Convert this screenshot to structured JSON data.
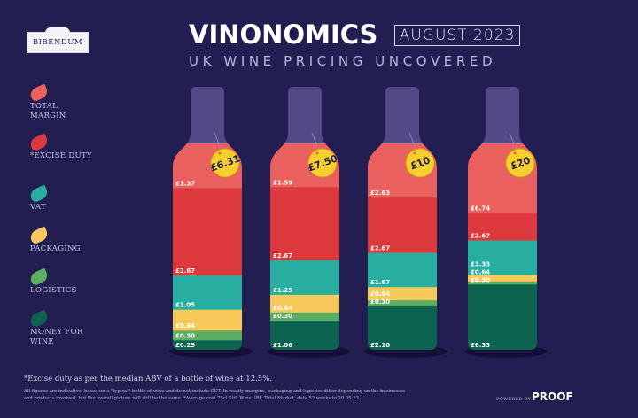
{
  "header": {
    "logo_text": "BIBENDUM",
    "title": "VINONOMICS",
    "date": "AUGUST 2023",
    "subtitle": "UK WINE PRICING UNCOVERED"
  },
  "legend": [
    {
      "label": "TOTAL MARGIN",
      "color": "#e9605e"
    },
    {
      "label": "*EXCISE DUTY",
      "color": "#dd393d"
    },
    {
      "label": "VAT",
      "color": "#27aea1"
    },
    {
      "label": "PACKAGING",
      "color": "#f7c95a"
    },
    {
      "label": "LOGISTICS",
      "color": "#5cae62"
    },
    {
      "label": "MONEY FOR WINE",
      "color": "#0c6450"
    }
  ],
  "chart_data": {
    "type": "bar",
    "stacked": true,
    "normalized": true,
    "categories": [
      "£6.31",
      "£7.50",
      "£10",
      "£20"
    ],
    "series": [
      {
        "name": "TOTAL MARGIN",
        "values": [
          1.37,
          1.59,
          2.63,
          6.74
        ]
      },
      {
        "name": "*EXCISE DUTY",
        "values": [
          2.67,
          2.67,
          2.67,
          2.67
        ]
      },
      {
        "name": "VAT",
        "values": [
          1.05,
          1.25,
          1.67,
          3.33
        ]
      },
      {
        "name": "PACKAGING",
        "values": [
          0.64,
          0.64,
          0.64,
          0.64
        ]
      },
      {
        "name": "LOGISTICS",
        "values": [
          0.3,
          0.3,
          0.3,
          0.3
        ]
      },
      {
        "name": "MONEY FOR WINE",
        "values": [
          0.29,
          1.06,
          2.1,
          6.33
        ]
      }
    ],
    "currency": "£"
  },
  "footer": {
    "note": "*Excise duty as per the median ABV of a bottle of wine at 12.5%.",
    "disclaimer": "All figures are indicative, based on a \"typical\" bottle of wine and do not include CCT. In reality margins, packaging and logistics differ depending on the businesses and products involved, but the overall picture will still be the same. *Average cost 75cl Still Wine, IRI, Total Market, data 52 weeks to 20.05.23.",
    "powered_by": "POWERED BY",
    "brand": "PROOF"
  }
}
